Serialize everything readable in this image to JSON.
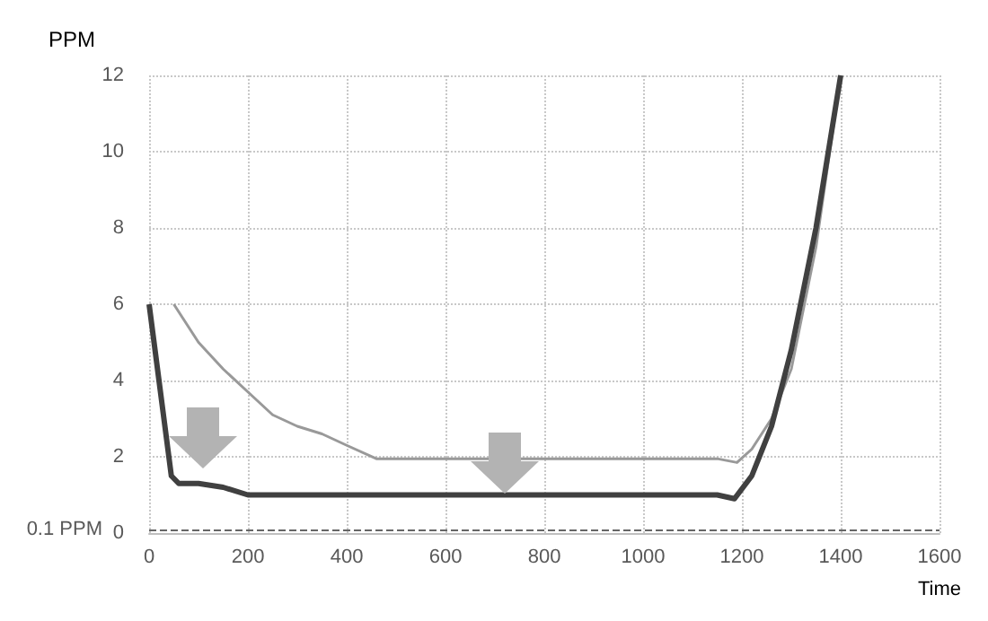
{
  "chart_data": {
    "type": "line",
    "xlabel": "Time",
    "ylabel": "PPM",
    "xlim": [
      0,
      1600
    ],
    "xticks": [
      0,
      200,
      400,
      600,
      800,
      1000,
      1200,
      1400,
      1600
    ],
    "ylim": [
      0,
      12
    ],
    "yticks": [
      0,
      2,
      4,
      6,
      8,
      10,
      12
    ],
    "grid": true,
    "marker": "none",
    "line_style": "solid",
    "series": [
      {
        "color": "#999999",
        "x": [
          50,
          100,
          150,
          200,
          250,
          300,
          350,
          400,
          460,
          600,
          800,
          1000,
          1150,
          1190,
          1220,
          1260,
          1300,
          1350,
          1400
        ],
        "values": [
          6,
          5.0,
          4.3,
          3.7,
          3.1,
          2.8,
          2.6,
          2.3,
          1.95,
          1.95,
          1.95,
          1.95,
          1.95,
          1.85,
          2.2,
          3.0,
          4.3,
          7.5,
          12
        ]
      },
      {
        "color": "#404040",
        "x": [
          0,
          20,
          45,
          60,
          100,
          150,
          200,
          400,
          600,
          800,
          1000,
          1150,
          1185,
          1220,
          1260,
          1300,
          1350,
          1400
        ],
        "values": [
          6,
          4,
          1.5,
          1.3,
          1.3,
          1.2,
          1.0,
          1.0,
          1.0,
          1.0,
          1.0,
          1.0,
          0.9,
          1.5,
          2.8,
          4.8,
          8,
          12
        ]
      }
    ],
    "ref_lines": [
      {
        "axis": "y",
        "value": 0.1,
        "label": "0.1 PPM",
        "color": "#666666",
        "line_style": "dashed"
      }
    ]
  }
}
